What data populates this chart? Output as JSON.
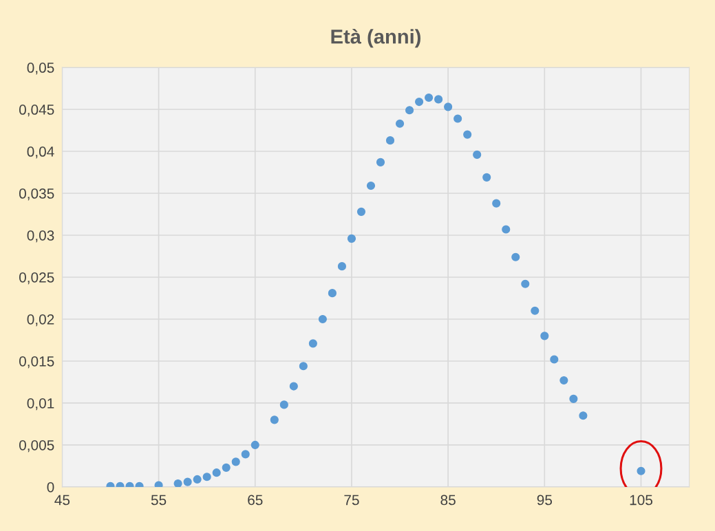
{
  "chart_data": {
    "type": "scatter",
    "title": "Età (anni)",
    "x": [
      50,
      51,
      52,
      53,
      55,
      57,
      58,
      59,
      60,
      61,
      62,
      63,
      64,
      65,
      67,
      68,
      69,
      70,
      71,
      72,
      73,
      74,
      75,
      76,
      77,
      78,
      79,
      80,
      81,
      82,
      83,
      84,
      85,
      86,
      87,
      88,
      89,
      90,
      91,
      92,
      93,
      94,
      95,
      96,
      97,
      98,
      99,
      105
    ],
    "series": [
      {
        "color": "#5b9bd5",
        "values": [
          0.0001,
          0.0001,
          0.0001,
          0.0001,
          0.0002,
          0.0004,
          0.0006,
          0.0009,
          0.0012,
          0.0017,
          0.0023,
          0.003,
          0.0039,
          0.005,
          0.008,
          0.0098,
          0.012,
          0.0144,
          0.0171,
          0.02,
          0.0231,
          0.0263,
          0.0296,
          0.0328,
          0.0359,
          0.0387,
          0.0413,
          0.0433,
          0.0449,
          0.0459,
          0.0464,
          0.0462,
          0.0453,
          0.0439,
          0.042,
          0.0396,
          0.0369,
          0.0338,
          0.0307,
          0.0274,
          0.0242,
          0.021,
          0.018,
          0.0152,
          0.0127,
          0.0105,
          0.0085,
          0.0019
        ]
      }
    ],
    "xlim": [
      45,
      110
    ],
    "xticks": [
      45,
      55,
      65,
      75,
      85,
      95,
      105
    ],
    "ylim": [
      0,
      0.05
    ],
    "yticks": [
      {
        "value": 0,
        "label": "0"
      },
      {
        "value": 0.005,
        "label": "0,005"
      },
      {
        "value": 0.01,
        "label": "0,01"
      },
      {
        "value": 0.015,
        "label": "0,015"
      },
      {
        "value": 0.02,
        "label": "0,02"
      },
      {
        "value": 0.025,
        "label": "0,025"
      },
      {
        "value": 0.03,
        "label": "0,03"
      },
      {
        "value": 0.035,
        "label": "0,035"
      },
      {
        "value": 0.04,
        "label": "0,04"
      },
      {
        "value": 0.045,
        "label": "0,045"
      },
      {
        "value": 0.05,
        "label": "0,05"
      }
    ],
    "grid": true,
    "marker": "circle"
  }
}
